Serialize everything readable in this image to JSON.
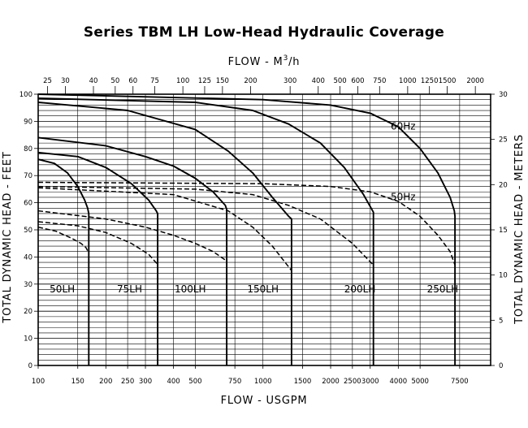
{
  "chart_data": {
    "type": "line",
    "title": "Series TBM LH Low-Head Hydraulic Coverage",
    "xlabel_bottom": "FLOW - USGPM",
    "xlabel_top_prefix": "FLOW - M",
    "xlabel_top_sup": "3",
    "xlabel_top_suffix": "/h",
    "ylabel_left": "TOTAL DYNAMIC HEAD - FEET",
    "ylabel_right": "TOTAL DYNAMIC HEAD - METERS",
    "x_scale": "log",
    "xlim": [
      100,
      10300
    ],
    "ylim": [
      0,
      100
    ],
    "ylim_right": [
      0,
      30
    ],
    "grid": true,
    "bottom_ticks": [
      "100",
      "150",
      "200",
      "250",
      "300",
      "400",
      "500",
      "750",
      "1000",
      "1500",
      "2000",
      "2500",
      "3000",
      "4000",
      "5000",
      "7500"
    ],
    "top_ticks": [
      "25",
      "30",
      "40",
      "50",
      "60",
      "75",
      "100",
      "125",
      "150",
      "200",
      "300",
      "400",
      "500",
      "600",
      "750",
      "1000",
      "1250",
      "1500",
      "2000"
    ],
    "left_ticks": [
      "0",
      "10",
      "20",
      "30",
      "40",
      "50",
      "60",
      "70",
      "80",
      "90",
      "100"
    ],
    "right_ticks": [
      "0",
      "5",
      "10",
      "15",
      "20",
      "25",
      "30"
    ],
    "frequency_labels": [
      {
        "text": "60Hz",
        "x": 3700,
        "y": 87
      },
      {
        "text": "50Hz",
        "x": 3700,
        "y": 61
      }
    ],
    "region_labels": [
      {
        "text": "50LH",
        "x": 128,
        "y": 27
      },
      {
        "text": "75LH",
        "x": 255,
        "y": 27
      },
      {
        "text": "100LH",
        "x": 475,
        "y": 27
      },
      {
        "text": "150LH",
        "x": 1000,
        "y": 27
      },
      {
        "text": "200LH",
        "x": 2700,
        "y": 27
      },
      {
        "text": "250LH",
        "x": 6300,
        "y": 27
      }
    ],
    "series": [
      {
        "model": "50LH",
        "freq": "60Hz",
        "style": "solid",
        "x": [
          100,
          118,
          135,
          150,
          161,
          166,
          168,
          168
        ],
        "y": [
          76,
          74.5,
          71,
          66,
          61,
          58,
          56,
          0
        ]
      },
      {
        "model": "50LH",
        "freq": "50Hz",
        "style": "dashed",
        "x": [
          100,
          120,
          140,
          155,
          163,
          168
        ],
        "y": [
          51,
          49.5,
          47,
          45,
          43.5,
          41.5
        ]
      },
      {
        "model": "75LH",
        "freq": "60Hz",
        "style": "solid",
        "x": [
          100,
          150,
          200,
          260,
          310,
          335,
          340,
          340
        ],
        "y": [
          78.5,
          77,
          73,
          67,
          61,
          57,
          56,
          0
        ]
      },
      {
        "model": "75LH",
        "freq": "50Hz",
        "style": "dashed",
        "x": [
          100,
          150,
          200,
          260,
          310,
          338
        ],
        "y": [
          53,
          51.5,
          49,
          45,
          41,
          37.5
        ]
      },
      {
        "model": "100LH",
        "freq": "60Hz",
        "style": "solid",
        "x": [
          100,
          200,
          300,
          400,
          500,
          600,
          680,
          690,
          690
        ],
        "y": [
          84,
          81,
          77,
          73.5,
          69,
          64,
          59,
          57.5,
          0
        ]
      },
      {
        "model": "100LH",
        "freq": "50Hz",
        "style": "dashed",
        "x": [
          100,
          200,
          300,
          400,
          500,
          600,
          690
        ],
        "y": [
          57,
          54,
          51,
          48,
          45,
          42,
          38.5
        ]
      },
      {
        "model": "150LH",
        "freq": "60Hz",
        "style": "solid",
        "x": [
          100,
          250,
          500,
          700,
          900,
          1100,
          1300,
          1340,
          1340
        ],
        "y": [
          97,
          94,
          87,
          79,
          71,
          62,
          55,
          54,
          0
        ]
      },
      {
        "model": "150LH",
        "freq": "50Hz",
        "style": "dashed",
        "x": [
          100,
          400,
          700,
          900,
          1100,
          1340
        ],
        "y": [
          65.5,
          63,
          57,
          51,
          44,
          35
        ]
      },
      {
        "model": "200LH",
        "freq": "60Hz",
        "style": "solid",
        "x": [
          100,
          500,
          900,
          1300,
          1800,
          2300,
          2800,
          3100,
          3100
        ],
        "y": [
          98.5,
          97,
          94,
          89,
          82,
          73,
          63,
          56.5,
          0
        ]
      },
      {
        "model": "200LH",
        "freq": "50Hz",
        "style": "dashed",
        "x": [
          100,
          500,
          900,
          1300,
          1800,
          2500,
          3100
        ],
        "y": [
          66,
          65,
          63,
          59,
          54,
          45,
          37
        ]
      },
      {
        "model": "250LH",
        "freq": "60Hz",
        "style": "solid",
        "x": [
          100,
          1000,
          2000,
          3000,
          4000,
          5000,
          6000,
          6800,
          7100,
          7150,
          7150
        ],
        "y": [
          100,
          98,
          96,
          93,
          88,
          80,
          71,
          62,
          57,
          55,
          0
        ]
      },
      {
        "model": "250LH",
        "freq": "50Hz",
        "style": "dashed",
        "x": [
          100,
          1000,
          2000,
          3000,
          4000,
          5000,
          6000,
          6800,
          7150
        ],
        "y": [
          67.5,
          67,
          66,
          64,
          60.5,
          55,
          48,
          42,
          37
        ]
      }
    ]
  }
}
